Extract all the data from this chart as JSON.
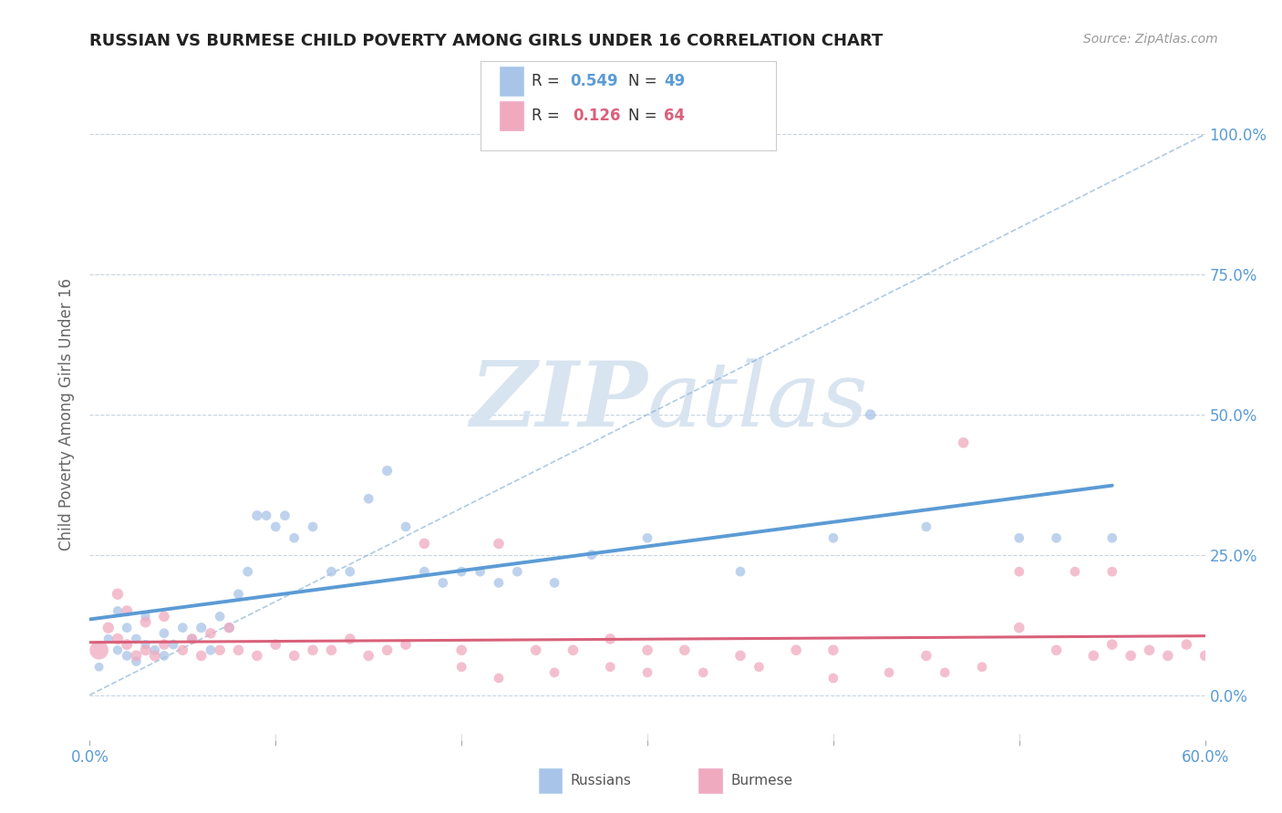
{
  "title": "RUSSIAN VS BURMESE CHILD POVERTY AMONG GIRLS UNDER 16 CORRELATION CHART",
  "source": "Source: ZipAtlas.com",
  "ylabel": "Child Poverty Among Girls Under 16",
  "xlim": [
    0.0,
    0.6
  ],
  "ylim": [
    -0.08,
    1.08
  ],
  "xticks": [
    0.0,
    0.1,
    0.2,
    0.3,
    0.4,
    0.5,
    0.6
  ],
  "xtick_labels": [
    "0.0%",
    "",
    "",
    "",
    "",
    "",
    "60.0%"
  ],
  "yticks": [
    0.0,
    0.25,
    0.5,
    0.75,
    1.0
  ],
  "ytick_labels": [
    "0.0%",
    "25.0%",
    "50.0%",
    "75.0%",
    "100.0%"
  ],
  "russian_color": "#a8c4e8",
  "burmese_color": "#f0aabf",
  "russian_line_color": "#5b9bd5",
  "burmese_line_color": "#d9607a",
  "dash_line_color": "#8ab4d9",
  "R_russian": 0.549,
  "N_russian": 49,
  "R_burmese": 0.126,
  "N_burmese": 64,
  "background_color": "#ffffff",
  "grid_color": "#c8d4e0",
  "watermark_color": "#d8e4f0",
  "russian_scatter_x": [
    0.005,
    0.01,
    0.015,
    0.015,
    0.02,
    0.02,
    0.025,
    0.025,
    0.03,
    0.03,
    0.035,
    0.04,
    0.04,
    0.045,
    0.05,
    0.055,
    0.06,
    0.065,
    0.07,
    0.075,
    0.08,
    0.085,
    0.09,
    0.095,
    0.1,
    0.105,
    0.11,
    0.12,
    0.13,
    0.14,
    0.15,
    0.16,
    0.17,
    0.18,
    0.19,
    0.2,
    0.21,
    0.22,
    0.23,
    0.25,
    0.27,
    0.3,
    0.35,
    0.4,
    0.42,
    0.45,
    0.5,
    0.52,
    0.55
  ],
  "russian_scatter_y": [
    0.05,
    0.1,
    0.08,
    0.15,
    0.07,
    0.12,
    0.06,
    0.1,
    0.09,
    0.14,
    0.08,
    0.07,
    0.11,
    0.09,
    0.12,
    0.1,
    0.12,
    0.08,
    0.14,
    0.12,
    0.18,
    0.22,
    0.32,
    0.32,
    0.3,
    0.32,
    0.28,
    0.3,
    0.22,
    0.22,
    0.35,
    0.4,
    0.3,
    0.22,
    0.2,
    0.22,
    0.22,
    0.2,
    0.22,
    0.2,
    0.25,
    0.28,
    0.22,
    0.28,
    0.5,
    0.3,
    0.28,
    0.28,
    0.28
  ],
  "russian_scatter_sizes": [
    50,
    55,
    55,
    55,
    60,
    60,
    60,
    60,
    55,
    55,
    60,
    60,
    60,
    60,
    60,
    60,
    65,
    60,
    60,
    60,
    60,
    60,
    65,
    60,
    60,
    60,
    60,
    60,
    60,
    60,
    60,
    65,
    60,
    60,
    60,
    60,
    60,
    60,
    60,
    60,
    60,
    60,
    60,
    60,
    70,
    60,
    60,
    60,
    60
  ],
  "burmese_scatter_x": [
    0.005,
    0.01,
    0.015,
    0.015,
    0.02,
    0.02,
    0.025,
    0.03,
    0.03,
    0.035,
    0.04,
    0.04,
    0.05,
    0.055,
    0.06,
    0.065,
    0.07,
    0.075,
    0.08,
    0.09,
    0.1,
    0.11,
    0.12,
    0.13,
    0.14,
    0.15,
    0.16,
    0.17,
    0.18,
    0.2,
    0.22,
    0.24,
    0.26,
    0.28,
    0.3,
    0.32,
    0.35,
    0.38,
    0.4,
    0.45,
    0.47,
    0.5,
    0.52,
    0.54,
    0.55,
    0.56,
    0.57,
    0.58,
    0.59,
    0.6,
    0.2,
    0.22,
    0.25,
    0.28,
    0.3,
    0.33,
    0.36,
    0.4,
    0.43,
    0.46,
    0.48,
    0.5,
    0.53,
    0.55
  ],
  "burmese_scatter_y": [
    0.08,
    0.12,
    0.1,
    0.18,
    0.09,
    0.15,
    0.07,
    0.08,
    0.13,
    0.07,
    0.09,
    0.14,
    0.08,
    0.1,
    0.07,
    0.11,
    0.08,
    0.12,
    0.08,
    0.07,
    0.09,
    0.07,
    0.08,
    0.08,
    0.1,
    0.07,
    0.08,
    0.09,
    0.27,
    0.08,
    0.27,
    0.08,
    0.08,
    0.1,
    0.08,
    0.08,
    0.07,
    0.08,
    0.08,
    0.07,
    0.45,
    0.12,
    0.08,
    0.07,
    0.09,
    0.07,
    0.08,
    0.07,
    0.09,
    0.07,
    0.05,
    0.03,
    0.04,
    0.05,
    0.04,
    0.04,
    0.05,
    0.03,
    0.04,
    0.04,
    0.05,
    0.22,
    0.22,
    0.22
  ],
  "burmese_scatter_sizes": [
    220,
    80,
    80,
    80,
    75,
    75,
    75,
    75,
    75,
    75,
    70,
    70,
    70,
    70,
    70,
    70,
    70,
    70,
    70,
    70,
    70,
    70,
    70,
    70,
    70,
    70,
    70,
    70,
    70,
    70,
    70,
    70,
    70,
    70,
    70,
    70,
    70,
    70,
    70,
    70,
    70,
    70,
    70,
    70,
    70,
    70,
    70,
    70,
    70,
    70,
    60,
    60,
    60,
    60,
    60,
    60,
    60,
    60,
    60,
    60,
    60,
    60,
    60,
    60
  ]
}
